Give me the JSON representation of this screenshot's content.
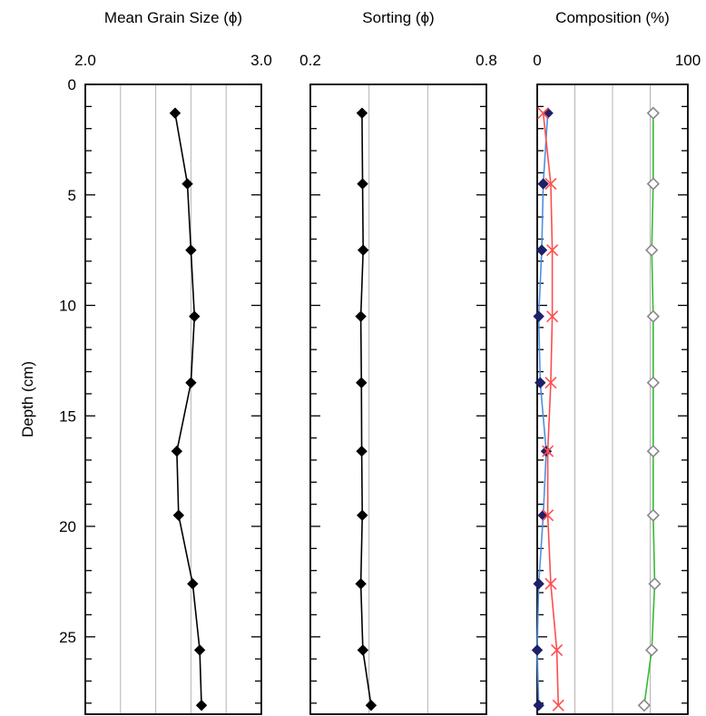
{
  "chart_data": {
    "type": "line",
    "y_axis": {
      "label": "Depth (cm)",
      "range": [
        0,
        28.5
      ],
      "inverted": true,
      "ticks": [
        0,
        5,
        10,
        15,
        20,
        25
      ],
      "tick_labels": [
        "0",
        "5",
        "10",
        "15",
        "20",
        "25"
      ],
      "minor_step": 1
    },
    "depths": [
      1.3,
      4.5,
      7.5,
      10.5,
      13.5,
      16.6,
      19.5,
      22.6,
      25.6,
      28.1
    ],
    "panels": [
      {
        "title": "Mean Grain Size (ϕ)",
        "xlim": [
          2.0,
          3.0
        ],
        "tick_labels": [
          "2.0",
          "3.0"
        ],
        "grid_step": 0.2,
        "series": [
          {
            "color": "#000000",
            "marker": "diamond-filled",
            "values": [
              2.51,
              2.58,
              2.6,
              2.62,
              2.6,
              2.52,
              2.53,
              2.61,
              2.65,
              2.66
            ]
          }
        ]
      },
      {
        "title": "Sorting (ϕ)",
        "xlim": [
          0.2,
          0.8
        ],
        "tick_labels": [
          "0.2",
          "0.8"
        ],
        "grid_step": 0.2,
        "series": [
          {
            "color": "#000000",
            "marker": "diamond-filled",
            "values": [
              0.376,
              0.378,
              0.38,
              0.372,
              0.374,
              0.375,
              0.377,
              0.372,
              0.379,
              0.407
            ]
          }
        ]
      },
      {
        "title": "Composition (%)",
        "xlim": [
          0,
          100
        ],
        "tick_labels": [
          "0",
          "100"
        ],
        "grid_step": 25,
        "series": [
          {
            "color": "#1f1f6b",
            "line_color": "#4f8fe0",
            "marker": "diamond-filled",
            "values": [
              7,
              4,
              3,
              1,
              2,
              6,
              4,
              1,
              0,
              1
            ]
          },
          {
            "color": "#ff4d4d",
            "line_color": "#ff4d4d",
            "marker": "x",
            "values": [
              4,
              9,
              10,
              10,
              9,
              7,
              7,
              9,
              13,
              14
            ]
          },
          {
            "color": "#888888",
            "line_color": "#33bb33",
            "marker": "diamond-open",
            "values": [
              77,
              77,
              76,
              77,
              77,
              77,
              77,
              78,
              76,
              71
            ]
          }
        ]
      }
    ]
  }
}
